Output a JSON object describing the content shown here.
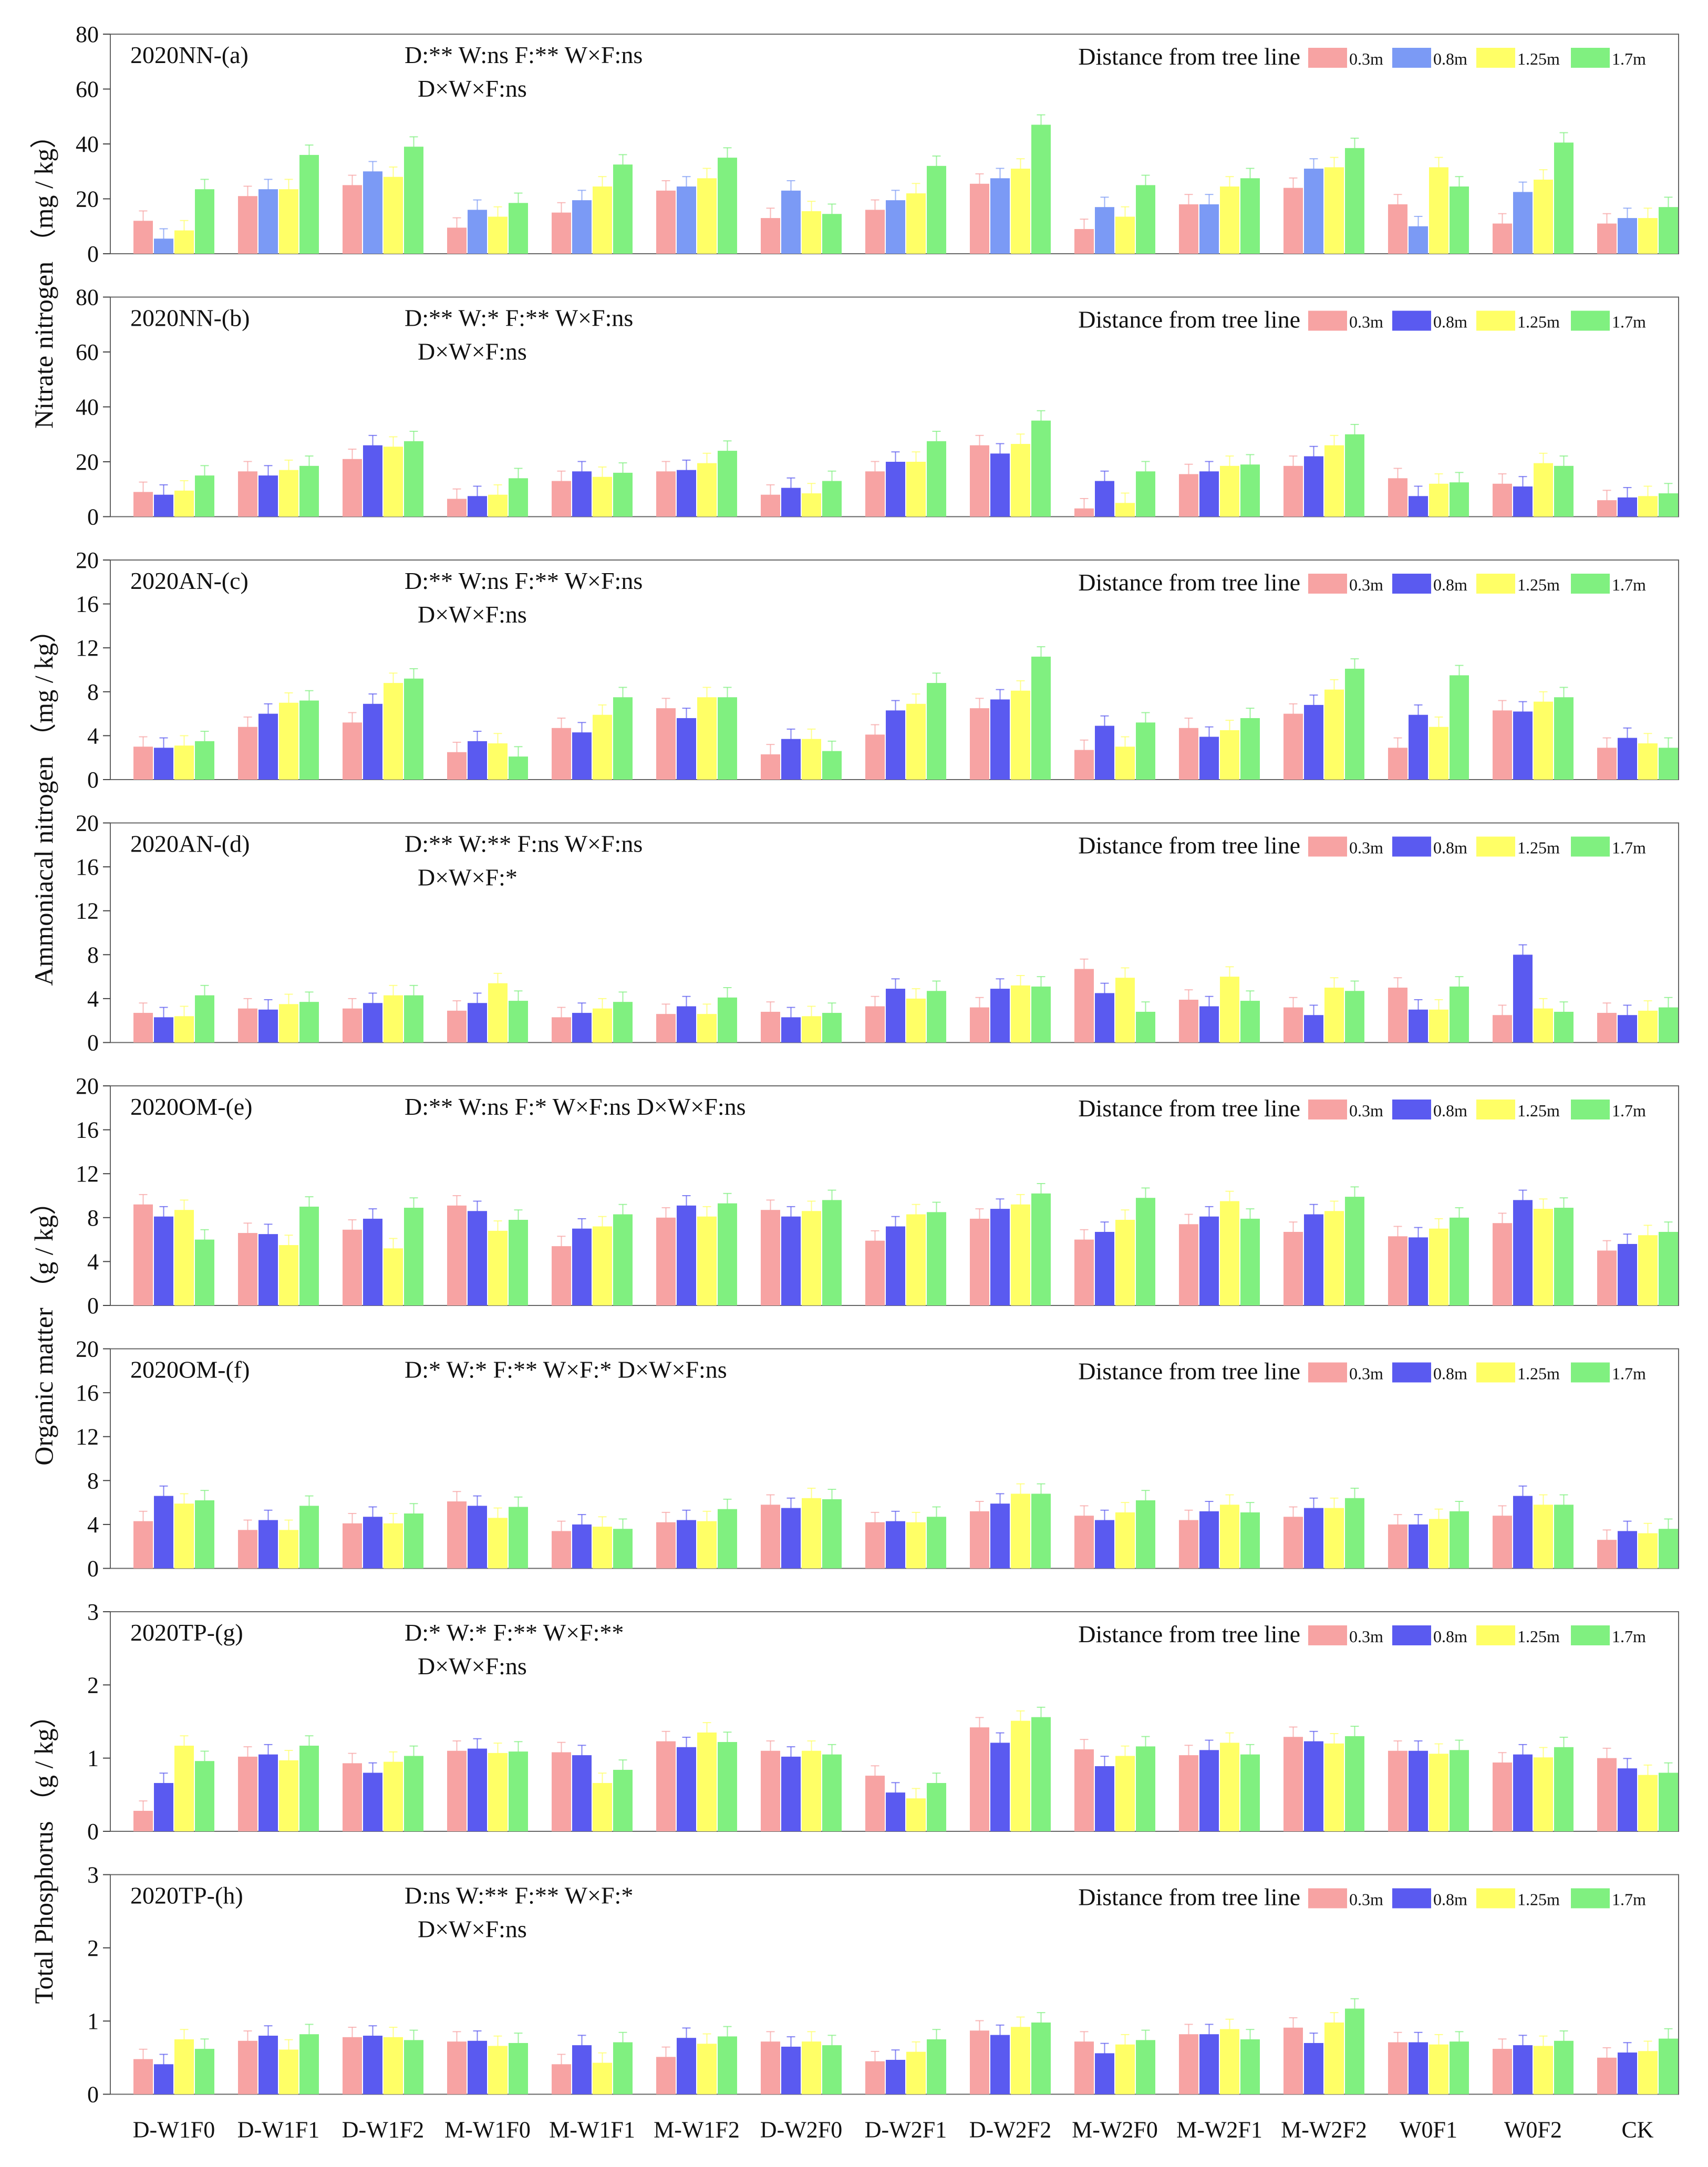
{
  "legend": {
    "title": "Distance from tree line",
    "entries": [
      "0.3m",
      "0.8m",
      "1.25m",
      "1.7m"
    ],
    "colors": [
      "#f7a3a3",
      "#5a5af0",
      "#ffff66",
      "#80f080"
    ],
    "colors_panel_a": [
      "#f7a3a3",
      "#7b9af5",
      "#ffff66",
      "#80f080"
    ]
  },
  "y_labels": [
    {
      "text": "Nitrate nitrogen （mg / kg）",
      "panels": [
        0,
        1
      ]
    },
    {
      "text": "Ammoniacal nitrogen （mg / kg）",
      "panels": [
        2,
        3
      ]
    },
    {
      "text": "Organic matter （g / kg）",
      "panels": [
        4,
        5
      ]
    },
    {
      "text": "Total Phosphorus （g / kg）",
      "panels": [
        6,
        7
      ]
    }
  ],
  "chart_data": [
    {
      "type": "bar",
      "title": "2020NN-(a)",
      "stats": [
        "D:**  W:ns  F:**  W×F:ns",
        "D×W×F:ns"
      ],
      "ylim": [
        0,
        80
      ],
      "yticks": [
        0,
        20,
        40,
        60,
        80
      ],
      "categories": [
        "D-W1F0",
        "D-W1F1",
        "D-W1F2",
        "M-W1F0",
        "M-W1F1",
        "M-W1F2",
        "D-W2F0",
        "D-W2F1",
        "D-W2F2",
        "M-W2F0",
        "M-W2F1",
        "M-W2F2",
        "W0F1",
        "W0F2",
        "CK"
      ],
      "series": [
        {
          "name": "0.3m",
          "values": [
            12,
            21,
            25,
            9.5,
            15,
            23,
            13,
            16,
            25.5,
            9,
            18,
            24,
            18,
            11,
            11
          ]
        },
        {
          "name": "0.8m",
          "values": [
            5.5,
            23.5,
            30,
            16,
            19.5,
            24.5,
            23,
            19.5,
            27.5,
            17,
            18,
            31,
            10,
            22.5,
            13
          ]
        },
        {
          "name": "1.25m",
          "values": [
            8.5,
            23.5,
            28,
            13.5,
            24.5,
            27.5,
            15.5,
            22,
            31,
            13.5,
            24.5,
            31.5,
            31.5,
            27,
            13
          ]
        },
        {
          "name": "1.7m",
          "values": [
            23.5,
            36,
            39,
            18.5,
            32.5,
            35,
            14.5,
            32,
            47,
            25,
            27.5,
            38.5,
            24.5,
            40.5,
            17
          ]
        }
      ]
    },
    {
      "type": "bar",
      "title": "2020NN-(b)",
      "stats": [
        "D:**  W:*  F:**  W×F:ns",
        "D×W×F:ns"
      ],
      "ylim": [
        0,
        80
      ],
      "yticks": [
        0,
        20,
        40,
        60,
        80
      ],
      "categories": [
        "D-W1F0",
        "D-W1F1",
        "D-W1F2",
        "M-W1F0",
        "M-W1F1",
        "M-W1F2",
        "D-W2F0",
        "D-W2F1",
        "D-W2F2",
        "M-W2F0",
        "M-W2F1",
        "M-W2F2",
        "W0F1",
        "W0F2",
        "CK"
      ],
      "series": [
        {
          "name": "0.3m",
          "values": [
            9,
            16.5,
            21,
            6.5,
            13,
            16.5,
            8,
            16.5,
            26,
            3,
            15.5,
            18.5,
            14,
            12,
            6
          ]
        },
        {
          "name": "0.8m",
          "values": [
            8,
            15,
            26,
            7.5,
            16.5,
            17,
            10.5,
            20,
            23,
            13,
            16.5,
            22,
            7.5,
            11,
            7
          ]
        },
        {
          "name": "1.25m",
          "values": [
            9.5,
            17,
            25.5,
            8,
            14.5,
            19.5,
            8.5,
            20,
            26.5,
            5,
            18.5,
            26,
            12,
            19.5,
            7.5
          ]
        },
        {
          "name": "1.7m",
          "values": [
            15,
            18.5,
            27.5,
            14,
            16,
            24,
            13,
            27.5,
            35,
            16.5,
            19,
            30,
            12.5,
            18.5,
            8.5
          ]
        }
      ]
    },
    {
      "type": "bar",
      "title": "2020AN-(c)",
      "stats": [
        "D:**  W:ns  F:**  W×F:ns",
        "D×W×F:ns"
      ],
      "ylim": [
        0,
        20
      ],
      "yticks": [
        0,
        4,
        8,
        12,
        16,
        20
      ],
      "categories": [
        "D-W1F0",
        "D-W1F1",
        "D-W1F2",
        "M-W1F0",
        "M-W1F1",
        "M-W1F2",
        "D-W2F0",
        "D-W2F1",
        "D-W2F2",
        "M-W2F0",
        "M-W2F1",
        "M-W2F2",
        "W0F1",
        "W0F2",
        "CK"
      ],
      "series": [
        {
          "name": "0.3m",
          "values": [
            3,
            4.8,
            5.2,
            2.5,
            4.7,
            6.5,
            2.3,
            4.1,
            6.5,
            2.7,
            4.7,
            6,
            2.9,
            6.3,
            2.9
          ]
        },
        {
          "name": "0.8m",
          "values": [
            2.9,
            6,
            6.9,
            3.5,
            4.3,
            5.6,
            3.7,
            6.3,
            7.3,
            4.9,
            3.9,
            6.8,
            5.9,
            6.2,
            3.8
          ]
        },
        {
          "name": "1.25m",
          "values": [
            3.1,
            7,
            8.8,
            3.3,
            5.9,
            7.5,
            3.7,
            6.9,
            8.1,
            3,
            4.5,
            8.2,
            4.8,
            7.1,
            3.3
          ]
        },
        {
          "name": "1.7m",
          "values": [
            3.5,
            7.2,
            9.2,
            2.1,
            7.5,
            7.5,
            2.6,
            8.8,
            11.2,
            5.2,
            5.6,
            10.1,
            9.5,
            7.5,
            2.9
          ]
        }
      ]
    },
    {
      "type": "bar",
      "title": "2020AN-(d)",
      "stats": [
        "D:**  W:**  F:ns  W×F:ns",
        "D×W×F:*"
      ],
      "ylim": [
        0,
        20
      ],
      "yticks": [
        0,
        4,
        8,
        12,
        16,
        20
      ],
      "categories": [
        "D-W1F0",
        "D-W1F1",
        "D-W1F2",
        "M-W1F0",
        "M-W1F1",
        "M-W1F2",
        "D-W2F0",
        "D-W2F1",
        "D-W2F2",
        "M-W2F0",
        "M-W2F1",
        "M-W2F2",
        "W0F1",
        "W0F2",
        "CK"
      ],
      "series": [
        {
          "name": "0.3m",
          "values": [
            2.7,
            3.1,
            3.1,
            2.9,
            2.3,
            2.6,
            2.8,
            3.3,
            3.2,
            6.7,
            3.9,
            3.2,
            5,
            2.5,
            2.7
          ]
        },
        {
          "name": "0.8m",
          "values": [
            2.3,
            3,
            3.6,
            3.6,
            2.7,
            3.3,
            2.3,
            4.9,
            4.9,
            4.5,
            3.3,
            2.5,
            3,
            8,
            2.5
          ]
        },
        {
          "name": "1.25m",
          "values": [
            2.4,
            3.5,
            4.3,
            5.4,
            3.1,
            2.6,
            2.4,
            4,
            5.2,
            5.9,
            6,
            5,
            3,
            3.1,
            2.9
          ]
        },
        {
          "name": "1.7m",
          "values": [
            4.3,
            3.7,
            4.3,
            3.8,
            3.7,
            4.1,
            2.7,
            4.7,
            5.1,
            2.8,
            3.8,
            4.7,
            5.1,
            2.8,
            3.2
          ]
        }
      ]
    },
    {
      "type": "bar",
      "title": "2020OM-(e)",
      "stats": [
        "D:**  W:ns  F:*  W×F:ns  D×W×F:ns"
      ],
      "ylim": [
        0,
        20
      ],
      "yticks": [
        0,
        4,
        8,
        12,
        16,
        20
      ],
      "categories": [
        "D-W1F0",
        "D-W1F1",
        "D-W1F2",
        "M-W1F0",
        "M-W1F1",
        "M-W1F2",
        "D-W2F0",
        "D-W2F1",
        "D-W2F2",
        "M-W2F0",
        "M-W2F1",
        "M-W2F2",
        "W0F1",
        "W0F2",
        "CK"
      ],
      "series": [
        {
          "name": "0.3m",
          "values": [
            9.2,
            6.6,
            6.9,
            9.1,
            5.4,
            8,
            8.7,
            5.9,
            7.9,
            6,
            7.4,
            6.7,
            6.3,
            7.5,
            5
          ]
        },
        {
          "name": "0.8m",
          "values": [
            8.1,
            6.5,
            7.9,
            8.6,
            7,
            9.1,
            8.1,
            7.2,
            8.8,
            6.7,
            8.1,
            8.3,
            6.2,
            9.6,
            5.6
          ]
        },
        {
          "name": "1.25m",
          "values": [
            8.7,
            5.5,
            5.2,
            6.8,
            7.2,
            8.1,
            8.6,
            8.3,
            9.2,
            7.8,
            9.5,
            8.6,
            7,
            8.8,
            6.4
          ]
        },
        {
          "name": "1.7m",
          "values": [
            6,
            9,
            8.9,
            7.8,
            8.3,
            9.3,
            9.6,
            8.5,
            10.2,
            9.8,
            7.9,
            9.9,
            8,
            8.9,
            6.7
          ]
        }
      ]
    },
    {
      "type": "bar",
      "title": "2020OM-(f)",
      "stats": [
        "D:*  W:*  F:**  W×F:*  D×W×F:ns"
      ],
      "ylim": [
        0,
        20
      ],
      "yticks": [
        0,
        4,
        8,
        12,
        16,
        20
      ],
      "categories": [
        "D-W1F0",
        "D-W1F1",
        "D-W1F2",
        "M-W1F0",
        "M-W1F1",
        "M-W1F2",
        "D-W2F0",
        "D-W2F1",
        "D-W2F2",
        "M-W2F0",
        "M-W2F1",
        "M-W2F2",
        "W0F1",
        "W0F2",
        "CK"
      ],
      "series": [
        {
          "name": "0.3m",
          "values": [
            4.3,
            3.5,
            4.1,
            6.1,
            3.4,
            4.2,
            5.8,
            4.2,
            5.2,
            4.8,
            4.4,
            4.7,
            4,
            4.8,
            2.6
          ]
        },
        {
          "name": "0.8m",
          "values": [
            6.6,
            4.4,
            4.7,
            5.7,
            4,
            4.4,
            5.5,
            4.3,
            5.9,
            4.4,
            5.2,
            5.5,
            4,
            6.6,
            3.4
          ]
        },
        {
          "name": "1.25m",
          "values": [
            5.9,
            3.5,
            4.1,
            4.6,
            3.8,
            4.3,
            6.4,
            4.2,
            6.8,
            5.1,
            5.8,
            5.5,
            4.5,
            5.8,
            3.2
          ]
        },
        {
          "name": "1.7m",
          "values": [
            6.2,
            5.7,
            5,
            5.6,
            3.6,
            5.4,
            6.3,
            4.7,
            6.8,
            6.2,
            5.1,
            6.4,
            5.2,
            5.8,
            3.6
          ]
        }
      ]
    },
    {
      "type": "bar",
      "title": "2020TP-(g)",
      "stats": [
        "D:*  W:*  F:**  W×F:**",
        "D×W×F:ns"
      ],
      "ylim": [
        0,
        3
      ],
      "yticks": [
        0,
        1,
        2,
        3
      ],
      "categories": [
        "D-W1F0",
        "D-W1F1",
        "D-W1F2",
        "M-W1F0",
        "M-W1F1",
        "M-W1F2",
        "D-W2F0",
        "D-W2F1",
        "D-W2F2",
        "M-W2F0",
        "M-W2F1",
        "M-W2F2",
        "W0F1",
        "W0F2",
        "CK"
      ],
      "series": [
        {
          "name": "0.3m",
          "values": [
            0.28,
            1.02,
            0.93,
            1.1,
            1.08,
            1.23,
            1.1,
            0.76,
            1.42,
            1.12,
            1.04,
            1.29,
            1.1,
            0.94,
            1
          ]
        },
        {
          "name": "0.8m",
          "values": [
            0.66,
            1.05,
            0.8,
            1.13,
            1.04,
            1.15,
            1.02,
            0.53,
            1.21,
            0.89,
            1.11,
            1.23,
            1.1,
            1.05,
            0.86
          ]
        },
        {
          "name": "1.25m",
          "values": [
            1.17,
            0.97,
            0.95,
            1.07,
            0.66,
            1.35,
            1.1,
            0.45,
            1.51,
            1.03,
            1.21,
            1.2,
            1.06,
            1.01,
            0.77
          ]
        },
        {
          "name": "1.7m",
          "values": [
            0.96,
            1.17,
            1.03,
            1.09,
            0.84,
            1.22,
            1.05,
            0.66,
            1.56,
            1.16,
            1.05,
            1.3,
            1.11,
            1.15,
            0.8
          ]
        }
      ]
    },
    {
      "type": "bar",
      "title": "2020TP-(h)",
      "stats": [
        "D:ns  W:** F:**  W×F:*",
        "D×W×F:ns"
      ],
      "ylim": [
        0,
        3
      ],
      "yticks": [
        0,
        1,
        2,
        3
      ],
      "categories": [
        "D-W1F0",
        "D-W1F1",
        "D-W1F2",
        "M-W1F0",
        "M-W1F1",
        "M-W1F2",
        "D-W2F0",
        "D-W2F1",
        "D-W2F2",
        "M-W2F0",
        "M-W2F1",
        "M-W2F2",
        "W0F1",
        "W0F2",
        "CK"
      ],
      "series": [
        {
          "name": "0.3m",
          "values": [
            0.48,
            0.73,
            0.78,
            0.72,
            0.41,
            0.51,
            0.72,
            0.45,
            0.87,
            0.72,
            0.82,
            0.91,
            0.71,
            0.62,
            0.5
          ]
        },
        {
          "name": "0.8m",
          "values": [
            0.41,
            0.8,
            0.8,
            0.73,
            0.67,
            0.77,
            0.65,
            0.47,
            0.81,
            0.56,
            0.82,
            0.7,
            0.71,
            0.67,
            0.57
          ]
        },
        {
          "name": "1.25m",
          "values": [
            0.75,
            0.61,
            0.78,
            0.66,
            0.43,
            0.69,
            0.72,
            0.58,
            0.92,
            0.68,
            0.89,
            0.98,
            0.68,
            0.66,
            0.59
          ]
        },
        {
          "name": "1.7m",
          "values": [
            0.62,
            0.82,
            0.74,
            0.7,
            0.71,
            0.79,
            0.67,
            0.75,
            0.98,
            0.74,
            0.75,
            1.17,
            0.72,
            0.73,
            0.76
          ]
        }
      ]
    }
  ]
}
